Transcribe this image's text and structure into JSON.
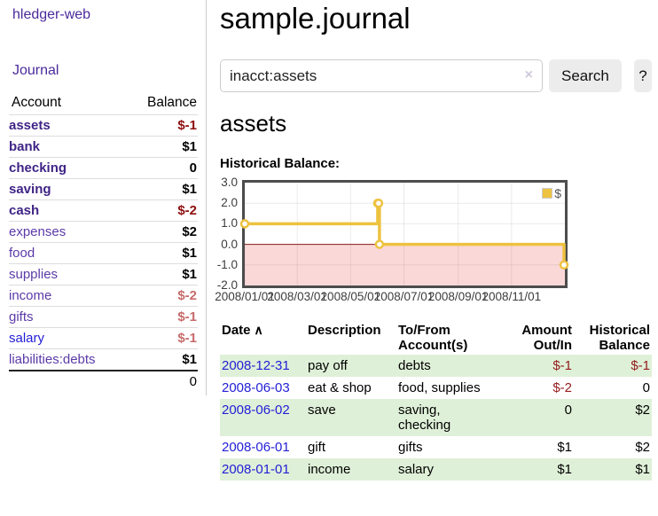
{
  "colors": {
    "link_purple": "#4a2a9b",
    "account_bold_purple": "#3f2486",
    "account_plain_purple": "#5b3aa8",
    "link_blue": "#2420d6",
    "negative_strong": "#8e0d0d",
    "negative_muted": "#c76b6b",
    "negative_table": "#941c1c",
    "row_stripe_green": "#dff0d8",
    "series_yellow": "#edc240",
    "negative_region_pink": "#fbd8d8",
    "zero_line_red": "#8b1d1d"
  },
  "sidebar": {
    "app_title": "hledger-web",
    "journal_label": "Journal",
    "accounts_header": {
      "account": "Account",
      "balance": "Balance"
    },
    "accounts": [
      {
        "name": "assets",
        "level": 1,
        "bold": true,
        "blue": false,
        "balance": "$-1",
        "balance_style": "neg-strong"
      },
      {
        "name": "bank",
        "level": 2,
        "bold": true,
        "blue": false,
        "balance": "$1",
        "balance_style": ""
      },
      {
        "name": "checking",
        "level": 3,
        "bold": true,
        "blue": false,
        "balance": "0",
        "balance_style": ""
      },
      {
        "name": "saving",
        "level": 3,
        "bold": true,
        "blue": false,
        "balance": "$1",
        "balance_style": ""
      },
      {
        "name": "cash",
        "level": 2,
        "bold": true,
        "blue": false,
        "balance": "$-2",
        "balance_style": "neg-strong"
      },
      {
        "name": "expenses",
        "level": 1,
        "bold": false,
        "blue": false,
        "balance": "$2",
        "balance_style": ""
      },
      {
        "name": "food",
        "level": 2,
        "bold": false,
        "blue": false,
        "balance": "$1",
        "balance_style": ""
      },
      {
        "name": "supplies",
        "level": 2,
        "bold": false,
        "blue": false,
        "balance": "$1",
        "balance_style": ""
      },
      {
        "name": "income",
        "level": 1,
        "bold": false,
        "blue": false,
        "balance": "$-2",
        "balance_style": "neg-muted"
      },
      {
        "name": "gifts",
        "level": 2,
        "bold": false,
        "blue": false,
        "balance": "$-1",
        "balance_style": "neg-muted"
      },
      {
        "name": "salary",
        "level": 2,
        "bold": false,
        "blue": true,
        "balance": "$-1",
        "balance_style": "neg-muted"
      },
      {
        "name": "liabilities:debts",
        "level": 1,
        "bold": false,
        "blue": false,
        "balance": "$1",
        "balance_style": ""
      }
    ],
    "total": "0"
  },
  "main": {
    "title": "sample.journal",
    "search": {
      "value": "inacct:assets",
      "clear_icon": "×",
      "button_label": "Search",
      "help_button_label": "?"
    },
    "account_heading": "assets",
    "chart_label": "Historical Balance:"
  },
  "chart_data": {
    "type": "line",
    "title": "Historical Balance",
    "step": true,
    "legend": "$",
    "legend_position": "top-right",
    "grid": true,
    "ylim": [
      -2,
      3
    ],
    "y_ticks": [
      "3.0",
      "2.0",
      "1.0",
      "0.0",
      "-1.0",
      "-2.0"
    ],
    "x_start_date": "2008-01-01",
    "x_range_days": 366,
    "x_ticks": [
      {
        "label": "2008/01/01",
        "date": "2008-01-01"
      },
      {
        "label": "2008/03/01",
        "date": "2008-03-01"
      },
      {
        "label": "2008/05/01",
        "date": "2008-05-01"
      },
      {
        "label": "2008/07/01",
        "date": "2008-07-01"
      },
      {
        "label": "2008/09/01",
        "date": "2008-09-01"
      },
      {
        "label": "2008/11/01",
        "date": "2008-11-01"
      }
    ],
    "series": [
      {
        "name": "$",
        "color": "#edc240",
        "points": [
          [
            "2008-01-01",
            1
          ],
          [
            "2008-06-01",
            2
          ],
          [
            "2008-06-02",
            2
          ],
          [
            "2008-06-03",
            0
          ],
          [
            "2008-12-31",
            -1
          ]
        ]
      }
    ]
  },
  "transactions": {
    "headers": {
      "date": "Date",
      "sort_icon": "∧",
      "description": "Description",
      "accounts": "To/From Account(s)",
      "amount": "Amount Out/In",
      "balance": "Historical Balance"
    },
    "rows": [
      {
        "date": "2008-12-31",
        "description": "pay off",
        "accounts": "debts",
        "amount": "$-1",
        "amount_negative": true,
        "balance": "$-1",
        "balance_negative": true
      },
      {
        "date": "2008-06-03",
        "description": "eat & shop",
        "accounts": "food, supplies",
        "amount": "$-2",
        "amount_negative": true,
        "balance": "0",
        "balance_negative": false
      },
      {
        "date": "2008-06-02",
        "description": "save",
        "accounts": "saving, checking",
        "amount": "0",
        "amount_negative": false,
        "balance": "$2",
        "balance_negative": false
      },
      {
        "date": "2008-06-01",
        "description": "gift",
        "accounts": "gifts",
        "amount": "$1",
        "amount_negative": false,
        "balance": "$2",
        "balance_negative": false
      },
      {
        "date": "2008-01-01",
        "description": "income",
        "accounts": "salary",
        "amount": "$1",
        "amount_negative": false,
        "balance": "$1",
        "balance_negative": false
      }
    ]
  }
}
